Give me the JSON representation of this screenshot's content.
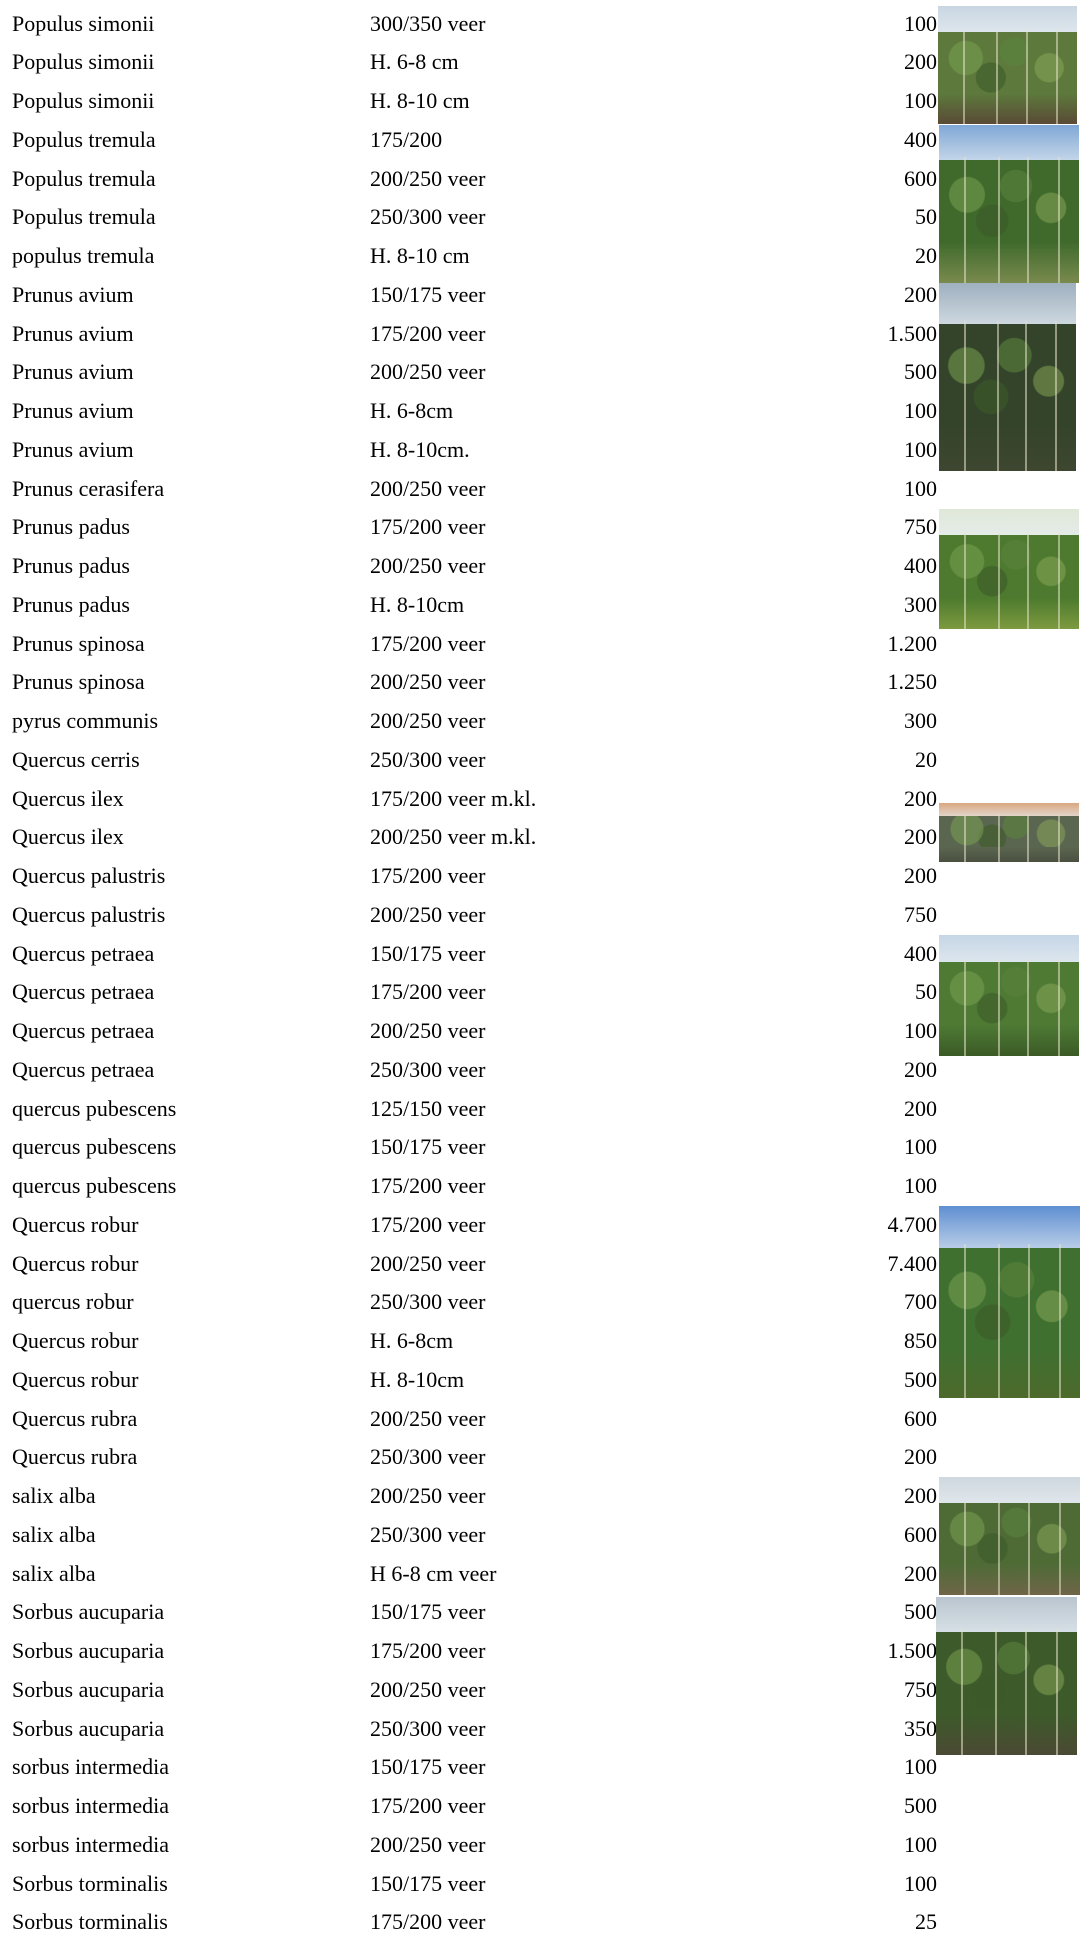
{
  "rows": [
    {
      "name": "Populus simonii",
      "size": "300/350 veer",
      "qty": "100"
    },
    {
      "name": "Populus simonii",
      "size": "H. 6-8 cm",
      "qty": "200"
    },
    {
      "name": "Populus simonii",
      "size": "H. 8-10 cm",
      "qty": "100"
    },
    {
      "name": "Populus tremula",
      "size": "175/200",
      "qty": "400"
    },
    {
      "name": "Populus tremula",
      "size": "200/250 veer",
      "qty": "600"
    },
    {
      "name": "Populus tremula",
      "size": "250/300 veer",
      "qty": "50"
    },
    {
      "name": "populus tremula",
      "size": "H. 8-10 cm",
      "qty": "20"
    },
    {
      "name": "Prunus avium",
      "size": "150/175 veer",
      "qty": "200"
    },
    {
      "name": "Prunus avium",
      "size": "175/200 veer",
      "qty": "1.500"
    },
    {
      "name": "Prunus avium",
      "size": "200/250 veer",
      "qty": "500"
    },
    {
      "name": "Prunus avium",
      "size": "H. 6-8cm",
      "qty": "100"
    },
    {
      "name": "Prunus avium",
      "size": "H. 8-10cm.",
      "qty": "100"
    },
    {
      "name": "Prunus cerasifera",
      "size": "200/250 veer",
      "qty": "100"
    },
    {
      "name": "Prunus padus",
      "size": "175/200 veer",
      "qty": "750"
    },
    {
      "name": "Prunus padus",
      "size": "200/250 veer",
      "qty": "400"
    },
    {
      "name": "Prunus padus",
      "size": "H. 8-10cm",
      "qty": "300"
    },
    {
      "name": "Prunus spinosa",
      "size": "175/200 veer",
      "qty": "1.200"
    },
    {
      "name": "Prunus spinosa",
      "size": "200/250 veer",
      "qty": "1.250"
    },
    {
      "name": "pyrus communis",
      "size": "200/250 veer",
      "qty": "300"
    },
    {
      "name": "Quercus cerris",
      "size": "250/300  veer",
      "qty": "20"
    },
    {
      "name": "Quercus ilex",
      "size": "175/200 veer m.kl.",
      "qty": "200"
    },
    {
      "name": "Quercus ilex",
      "size": "200/250 veer m.kl.",
      "qty": "200"
    },
    {
      "name": "Quercus palustris",
      "size": "175/200 veer",
      "qty": "200"
    },
    {
      "name": "Quercus palustris",
      "size": "200/250 veer",
      "qty": "750"
    },
    {
      "name": "Quercus petraea",
      "size": "150/175 veer",
      "qty": "400"
    },
    {
      "name": "Quercus petraea",
      "size": "175/200 veer",
      "qty": "50"
    },
    {
      "name": "Quercus petraea",
      "size": "200/250 veer",
      "qty": "100"
    },
    {
      "name": "Quercus petraea",
      "size": "250/300 veer",
      "qty": "200"
    },
    {
      "name": "quercus pubescens",
      "size": "125/150 veer",
      "qty": "200"
    },
    {
      "name": "quercus pubescens",
      "size": "150/175 veer",
      "qty": "100"
    },
    {
      "name": "quercus pubescens",
      "size": "175/200 veer",
      "qty": "100"
    },
    {
      "name": "Quercus robur",
      "size": "175/200 veer",
      "qty": "4.700"
    },
    {
      "name": "Quercus robur",
      "size": "200/250 veer",
      "qty": "7.400"
    },
    {
      "name": "quercus robur",
      "size": "250/300 veer",
      "qty": "700"
    },
    {
      "name": "Quercus robur",
      "size": "H. 6-8cm",
      "qty": "850"
    },
    {
      "name": "Quercus robur",
      "size": "H. 8-10cm",
      "qty": "500"
    },
    {
      "name": "Quercus rubra",
      "size": "200/250 veer",
      "qty": "600"
    },
    {
      "name": "Quercus rubra",
      "size": "250/300 veer",
      "qty": "200"
    },
    {
      "name": "salix alba",
      "size": "200/250 veer",
      "qty": "200"
    },
    {
      "name": "salix alba",
      "size": "250/300 veer",
      "qty": "600"
    },
    {
      "name": "salix alba",
      "size": "H 6-8 cm veer",
      "qty": "200"
    },
    {
      "name": "Sorbus aucuparia",
      "size": "150/175 veer",
      "qty": "500"
    },
    {
      "name": "Sorbus aucuparia",
      "size": "175/200 veer",
      "qty": "1.500"
    },
    {
      "name": "Sorbus aucuparia",
      "size": "200/250 veer",
      "qty": "750"
    },
    {
      "name": "Sorbus aucuparia",
      "size": "250/300 veer",
      "qty": "350"
    },
    {
      "name": "sorbus intermedia",
      "size": "150/175 veer",
      "qty": "100"
    },
    {
      "name": "sorbus intermedia",
      "size": "175/200 veer",
      "qty": "500"
    },
    {
      "name": "sorbus intermedia",
      "size": "200/250 veer",
      "qty": "100"
    },
    {
      "name": "Sorbus torminalis",
      "size": "150/175 veer",
      "qty": "100"
    },
    {
      "name": "Sorbus torminalis",
      "size": "175/200 veer",
      "qty": "25"
    }
  ],
  "photos": [
    {
      "subject": "Populus simonii nursery row",
      "sky": "#c9d6e2",
      "canopy": "#5d7a3c",
      "ground": "#5a4a36"
    },
    {
      "subject": "Populus tremula nursery row",
      "sky": "#7fa7d6",
      "canopy": "#3f6a2c",
      "ground": "#7a8a4e"
    },
    {
      "subject": "Prunus avium nursery row",
      "sky": "#9fb0bf",
      "canopy": "#33442a",
      "ground": "#3e4630"
    },
    {
      "subject": "Prunus padus nursery row",
      "sky": "#dfe8d8",
      "canopy": "#4d7a2e",
      "ground": "#7d9a3f"
    },
    {
      "subject": "Quercus ilex nursery row",
      "sky": "#d9a781",
      "canopy": "#5b6650",
      "ground": "#4a5040"
    },
    {
      "subject": "Quercus petraea nursery row",
      "sky": "#c6d6e6",
      "canopy": "#4e7a34",
      "ground": "#3b5a26"
    },
    {
      "subject": "Quercus robur nursery row",
      "sky": "#5f8fd2",
      "canopy": "#3f7030",
      "ground": "#4c6a2c"
    },
    {
      "subject": "Salix alba nursery row",
      "sky": "#cfd8df",
      "canopy": "#4e6b36",
      "ground": "#6f6548"
    },
    {
      "subject": "Sorbus aucuparia nursery row",
      "sky": "#b9c5cf",
      "canopy": "#3d5a2a",
      "ground": "#4b4a34"
    }
  ]
}
